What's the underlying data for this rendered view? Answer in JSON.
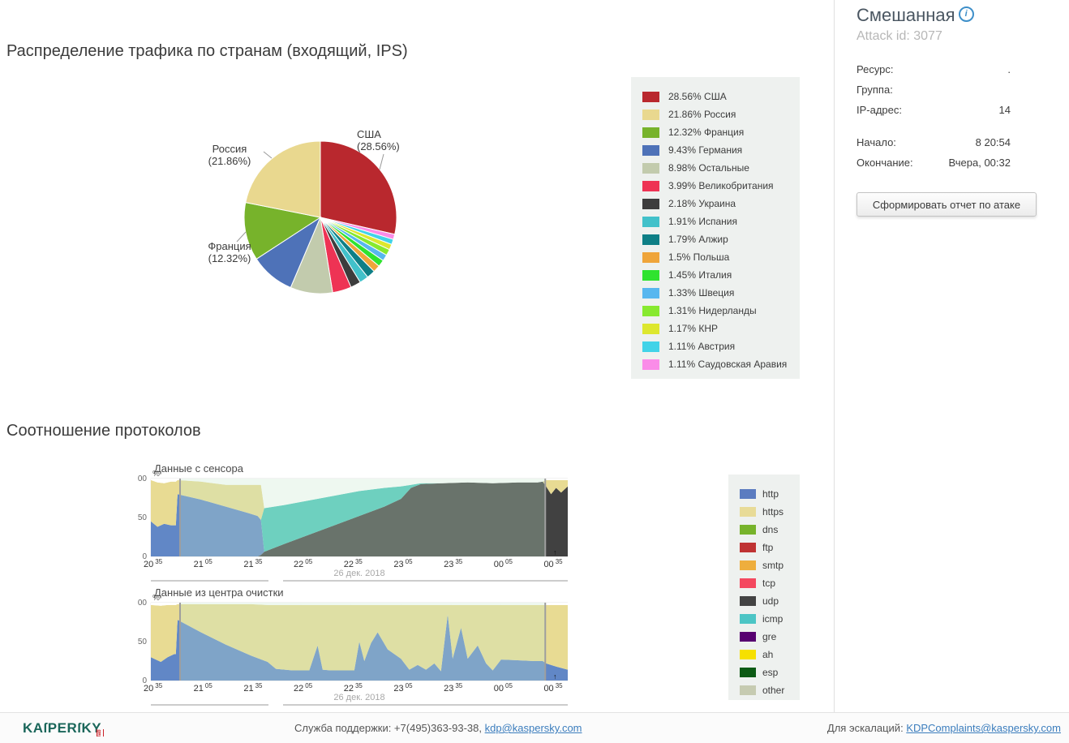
{
  "sections": {
    "protocols_title": "Соотношение протоколов"
  },
  "pie_callouts": [
    {
      "line1": "США",
      "line2": "(28.56%)"
    },
    {
      "line1": "Россия",
      "line2": "(21.86%)"
    },
    {
      "line1": "Франция",
      "line2": "(12.32%)"
    }
  ],
  "chart_data": [
    {
      "type": "pie",
      "title": "Распределение трафика по странам (входящий, IPS)",
      "legend_position": "right",
      "slices": [
        {
          "label": "США",
          "value": 28.56,
          "pct_label": "28.56%",
          "color": "#b9282e"
        },
        {
          "label": "Россия",
          "value": 21.86,
          "pct_label": "21.86%",
          "color": "#e9d88f"
        },
        {
          "label": "Франция",
          "value": 12.32,
          "pct_label": "12.32%",
          "color": "#77b32b"
        },
        {
          "label": "Германия",
          "value": 9.43,
          "pct_label": "9.43%",
          "color": "#4e72b8"
        },
        {
          "label": "Остальные",
          "value": 8.98,
          "pct_label": "8.98%",
          "color": "#c2cbad"
        },
        {
          "label": "Великобритания",
          "value": 3.99,
          "pct_label": "3.99%",
          "color": "#ee3354"
        },
        {
          "label": "Украина",
          "value": 2.18,
          "pct_label": "2.18%",
          "color": "#3d3d3d"
        },
        {
          "label": "Испания",
          "value": 1.91,
          "pct_label": "1.91%",
          "color": "#41c1ca"
        },
        {
          "label": "Алжир",
          "value": 1.79,
          "pct_label": "1.79%",
          "color": "#0e7f86"
        },
        {
          "label": "Польша",
          "value": 1.5,
          "pct_label": "1.5%",
          "color": "#efa53a"
        },
        {
          "label": "Италия",
          "value": 1.45,
          "pct_label": "1.45%",
          "color": "#2fe32f"
        },
        {
          "label": "Швеция",
          "value": 1.33,
          "pct_label": "1.33%",
          "color": "#58b7ef"
        },
        {
          "label": "Нидерланды",
          "value": 1.31,
          "pct_label": "1.31%",
          "color": "#87e92f"
        },
        {
          "label": "КНР",
          "value": 1.17,
          "pct_label": "1.17%",
          "color": "#dde72e"
        },
        {
          "label": "Австрия",
          "value": 1.11,
          "pct_label": "1.11%",
          "color": "#41d3e8"
        },
        {
          "label": "Саудовская Аравия",
          "value": 1.11,
          "pct_label": "1.11%",
          "color": "#fa8ce8"
        }
      ],
      "draw_order": [
        0,
        15,
        14,
        13,
        12,
        11,
        10,
        9,
        8,
        7,
        6,
        5,
        4,
        3,
        2,
        1
      ]
    },
    {
      "type": "area",
      "title": "Данные с сенсора",
      "stacking": "percent",
      "ylabel": "%",
      "yticks": [
        0,
        50,
        100
      ],
      "ylim": [
        0,
        100
      ],
      "xlabel": "26 дек. 2018",
      "xtick_minutes": [
        0,
        30,
        60,
        90,
        120,
        150,
        180,
        210,
        240
      ],
      "xtick_labels": [
        "20:35",
        "21:05",
        "21:35",
        "22:05",
        "22:35",
        "23:05",
        "23:35",
        "00:05",
        "00:35"
      ],
      "plot_band_minutes": [
        17.5,
        236.5
      ],
      "x_minutes": [
        0,
        4,
        8,
        12,
        15,
        16,
        30,
        45,
        58,
        64,
        66,
        68,
        80,
        95,
        110,
        125,
        140,
        150,
        156,
        162,
        175,
        190,
        205,
        220,
        232,
        235,
        237,
        240,
        243,
        246,
        250
      ],
      "series": [
        {
          "name": "udp",
          "color": "#414141",
          "values": [
            0,
            0,
            0,
            0,
            0,
            0,
            0,
            0,
            0,
            0,
            2,
            6,
            16,
            28,
            40,
            52,
            64,
            74,
            88,
            93,
            94,
            95,
            94,
            95,
            95,
            96,
            90,
            80,
            88,
            82,
            90
          ]
        },
        {
          "name": "http",
          "color": "#6187c6",
          "values": [
            45,
            38,
            42,
            40,
            40,
            80,
            73,
            64,
            56,
            52,
            45,
            0,
            0,
            0,
            0,
            0,
            0,
            0,
            0,
            0,
            0,
            0,
            0,
            0,
            0,
            0,
            0,
            0,
            0,
            0,
            0
          ]
        },
        {
          "name": "icmp",
          "color": "#48c6b9",
          "values": [
            0,
            0,
            0,
            0,
            0,
            0,
            0,
            0,
            0,
            0,
            0,
            56,
            50,
            44,
            38,
            32,
            24,
            16,
            4,
            1,
            0,
            0,
            0,
            0,
            0,
            0,
            0,
            0,
            0,
            0,
            0
          ]
        },
        {
          "name": "https",
          "color": "#e8db93",
          "values": [
            53,
            57,
            52,
            56,
            56,
            18,
            23,
            28,
            36,
            40,
            45,
            0,
            0,
            0,
            0,
            0,
            0,
            0,
            0,
            0,
            0,
            0,
            0,
            0,
            0,
            0,
            8,
            18,
            10,
            16,
            8
          ]
        },
        {
          "name": "other",
          "color": "#ffffff",
          "values": [
            2,
            5,
            6,
            4,
            4,
            2,
            4,
            8,
            8,
            8,
            8,
            38,
            34,
            28,
            22,
            16,
            12,
            10,
            8,
            6,
            6,
            5,
            6,
            5,
            5,
            4,
            2,
            2,
            2,
            2,
            2
          ]
        }
      ]
    },
    {
      "type": "area",
      "title": "Данные из центра очистки",
      "stacking": "percent",
      "ylabel": "%",
      "yticks": [
        0,
        50,
        100
      ],
      "ylim": [
        0,
        100
      ],
      "xlabel": "26 дек. 2018",
      "xtick_minutes": [
        0,
        30,
        60,
        90,
        120,
        150,
        180,
        210,
        240
      ],
      "xtick_labels": [
        "20:35",
        "21:05",
        "21:35",
        "22:05",
        "22:35",
        "23:05",
        "23:35",
        "00:05",
        "00:35"
      ],
      "plot_band_minutes": [
        17.5,
        236.5
      ],
      "x_minutes": [
        0,
        6,
        10,
        14,
        15,
        16,
        30,
        45,
        60,
        70,
        75,
        85,
        95,
        100,
        103,
        108,
        115,
        122,
        125,
        128,
        132,
        136,
        142,
        150,
        155,
        160,
        165,
        170,
        174,
        178,
        181,
        186,
        190,
        196,
        201,
        205,
        210,
        220,
        230,
        235,
        237,
        243,
        250
      ],
      "series": [
        {
          "name": "http",
          "color": "#6187c6",
          "values": [
            30,
            24,
            30,
            34,
            34,
            78,
            62,
            46,
            32,
            24,
            15,
            13,
            13,
            45,
            14,
            13,
            13,
            13,
            50,
            25,
            48,
            62,
            40,
            28,
            14,
            20,
            14,
            22,
            12,
            85,
            28,
            68,
            28,
            45,
            22,
            13,
            27,
            26,
            25,
            25,
            22,
            18,
            14
          ]
        },
        {
          "name": "https",
          "color": "#e8db93",
          "values": [
            67,
            72,
            67,
            63,
            63,
            20,
            36,
            52,
            66,
            73,
            82,
            84,
            84,
            52,
            83,
            84,
            84,
            84,
            47,
            72,
            49,
            35,
            57,
            69,
            83,
            77,
            83,
            75,
            85,
            12,
            69,
            29,
            69,
            52,
            75,
            84,
            70,
            71,
            72,
            72,
            75,
            79,
            83
          ]
        },
        {
          "name": "other",
          "color": "#ffffff",
          "values": [
            3,
            4,
            3,
            3,
            3,
            2,
            2,
            2,
            2,
            3,
            3,
            3,
            3,
            3,
            3,
            3,
            3,
            3,
            3,
            3,
            3,
            3,
            3,
            3,
            3,
            3,
            3,
            3,
            3,
            3,
            3,
            3,
            3,
            3,
            3,
            3,
            3,
            3,
            3,
            3,
            3,
            3,
            3
          ]
        }
      ]
    }
  ],
  "protocol_legend": {
    "items": [
      {
        "label": "http",
        "color": "#5b7cc0"
      },
      {
        "label": "https",
        "color": "#e8db97"
      },
      {
        "label": "dns",
        "color": "#77b32b"
      },
      {
        "label": "ftp",
        "color": "#bf3333"
      },
      {
        "label": "smtp",
        "color": "#eeae3d"
      },
      {
        "label": "tcp",
        "color": "#f4485f"
      },
      {
        "label": "udp",
        "color": "#434343"
      },
      {
        "label": "icmp",
        "color": "#4cc5c5"
      },
      {
        "label": "gre",
        "color": "#570070"
      },
      {
        "label": "ah",
        "color": "#f6e000"
      },
      {
        "label": "esp",
        "color": "#0c5a14"
      },
      {
        "label": "other",
        "color": "#c6cbb1"
      }
    ]
  },
  "sidebar": {
    "title": "Смешанная",
    "info_icon": "i",
    "attack_id": "Attack id: 3077",
    "rows": [
      {
        "label": "Ресурс:",
        "value": ".",
        "gap": false
      },
      {
        "label": "Группа:",
        "value": "",
        "gap": false
      },
      {
        "label": "IP-адрес:",
        "value": "14",
        "gap": false
      },
      {
        "label": "Начало:",
        "value": "8 20:54",
        "gap": true
      },
      {
        "label": "Окончание:",
        "value": "Вчера, 00:32",
        "gap": false
      }
    ],
    "report_button": "Сформировать отчет по атаке"
  },
  "footer": {
    "logo": "KAſPERſKY",
    "logo_sub": "lab",
    "support_label": "Служба поддержки: +7(495)363-93-38,",
    "support_link": "kdp@kaspersky.com",
    "escalation_label": "Для эскалаций:",
    "escalation_link": "KDPComplaints@kaspersky.com"
  }
}
